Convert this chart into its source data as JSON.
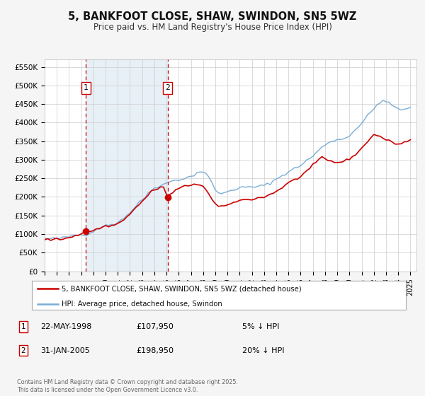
{
  "title": "5, BANKFOOT CLOSE, SHAW, SWINDON, SN5 5WZ",
  "subtitle": "Price paid vs. HM Land Registry's House Price Index (HPI)",
  "legend_line1": "5, BANKFOOT CLOSE, SHAW, SWINDON, SN5 5WZ (detached house)",
  "legend_line2": "HPI: Average price, detached house, Swindon",
  "property_color": "#cc0000",
  "hpi_color": "#7aadd4",
  "shade_color": "#deeaf5",
  "background_color": "#f5f5f5",
  "plot_bg_color": "#ffffff",
  "purchase1_date": 1998.387,
  "purchase1_price": 107950,
  "purchase2_date": 2005.083,
  "purchase2_price": 198950,
  "ylim": [
    0,
    570000
  ],
  "xlim_start": 1995.0,
  "xlim_end": 2025.5,
  "yticks": [
    0,
    50000,
    100000,
    150000,
    200000,
    250000,
    300000,
    350000,
    400000,
    450000,
    500000,
    550000
  ],
  "ytick_labels": [
    "£0",
    "£50K",
    "£100K",
    "£150K",
    "£200K",
    "£250K",
    "£300K",
    "£350K",
    "£400K",
    "£450K",
    "£500K",
    "£550K"
  ],
  "hpi_xpts": [
    1995.0,
    1995.25,
    1995.5,
    1995.75,
    1996.0,
    1996.25,
    1996.5,
    1996.75,
    1997.0,
    1997.25,
    1997.5,
    1997.75,
    1998.0,
    1998.25,
    1998.5,
    1998.75,
    1999.0,
    1999.25,
    1999.5,
    1999.75,
    2000.0,
    2000.25,
    2000.5,
    2000.75,
    2001.0,
    2001.25,
    2001.5,
    2001.75,
    2002.0,
    2002.25,
    2002.5,
    2002.75,
    2003.0,
    2003.25,
    2003.5,
    2003.75,
    2004.0,
    2004.25,
    2004.5,
    2004.75,
    2005.0,
    2005.25,
    2005.5,
    2005.75,
    2006.0,
    2006.25,
    2006.5,
    2006.75,
    2007.0,
    2007.25,
    2007.5,
    2007.75,
    2008.0,
    2008.25,
    2008.5,
    2008.75,
    2009.0,
    2009.25,
    2009.5,
    2009.75,
    2010.0,
    2010.25,
    2010.5,
    2010.75,
    2011.0,
    2011.25,
    2011.5,
    2011.75,
    2012.0,
    2012.25,
    2012.5,
    2012.75,
    2013.0,
    2013.25,
    2013.5,
    2013.75,
    2014.0,
    2014.25,
    2014.5,
    2014.75,
    2015.0,
    2015.25,
    2015.5,
    2015.75,
    2016.0,
    2016.25,
    2016.5,
    2016.75,
    2017.0,
    2017.25,
    2017.5,
    2017.75,
    2018.0,
    2018.25,
    2018.5,
    2018.75,
    2019.0,
    2019.25,
    2019.5,
    2019.75,
    2020.0,
    2020.25,
    2020.5,
    2020.75,
    2021.0,
    2021.25,
    2021.5,
    2021.75,
    2022.0,
    2022.25,
    2022.5,
    2022.75,
    2023.0,
    2023.25,
    2023.5,
    2023.75,
    2024.0,
    2024.25,
    2024.5,
    2024.75,
    2025.0
  ],
  "hpi_ypts": [
    88000,
    87500,
    87000,
    87500,
    88000,
    88500,
    89500,
    91000,
    93000,
    95000,
    97000,
    97500,
    98000,
    99000,
    100000,
    104000,
    108000,
    113000,
    118000,
    121000,
    122000,
    124000,
    126000,
    128000,
    132000,
    138000,
    144000,
    150000,
    158000,
    167000,
    176000,
    184000,
    192000,
    200000,
    210000,
    218000,
    224000,
    228000,
    232000,
    234000,
    236000,
    240000,
    244000,
    246000,
    247000,
    248000,
    250000,
    252000,
    255000,
    260000,
    265000,
    268000,
    268000,
    262000,
    250000,
    235000,
    220000,
    212000,
    208000,
    210000,
    215000,
    218000,
    220000,
    222000,
    224000,
    225000,
    226000,
    226000,
    226000,
    227000,
    228000,
    229000,
    231000,
    234000,
    238000,
    243000,
    248000,
    253000,
    258000,
    263000,
    268000,
    272000,
    276000,
    280000,
    286000,
    292000,
    298000,
    303000,
    310000,
    318000,
    326000,
    333000,
    340000,
    346000,
    350000,
    353000,
    354000,
    354000,
    356000,
    360000,
    366000,
    374000,
    382000,
    390000,
    398000,
    408000,
    418000,
    428000,
    436000,
    448000,
    456000,
    460000,
    456000,
    450000,
    446000,
    442000,
    438000,
    436000,
    434000,
    436000,
    440000
  ],
  "prop_xpts": [
    1995.0,
    1995.25,
    1995.5,
    1995.75,
    1996.0,
    1996.25,
    1996.5,
    1996.75,
    1997.0,
    1997.25,
    1997.5,
    1997.75,
    1998.0,
    1998.387,
    1998.5,
    1998.75,
    1999.0,
    1999.25,
    1999.5,
    1999.75,
    2000.0,
    2000.25,
    2000.5,
    2000.75,
    2001.0,
    2001.25,
    2001.5,
    2001.75,
    2002.0,
    2002.25,
    2002.5,
    2002.75,
    2003.0,
    2003.25,
    2003.5,
    2003.75,
    2004.0,
    2004.25,
    2004.5,
    2004.75,
    2005.083,
    2005.25,
    2005.5,
    2005.75,
    2006.0,
    2006.25,
    2006.5,
    2006.75,
    2007.0,
    2007.25,
    2007.5,
    2007.75,
    2008.0,
    2008.25,
    2008.5,
    2008.75,
    2009.0,
    2009.25,
    2009.5,
    2009.75,
    2010.0,
    2010.25,
    2010.5,
    2010.75,
    2011.0,
    2011.25,
    2011.5,
    2011.75,
    2012.0,
    2012.25,
    2012.5,
    2012.75,
    2013.0,
    2013.25,
    2013.5,
    2013.75,
    2014.0,
    2014.25,
    2014.5,
    2014.75,
    2015.0,
    2015.25,
    2015.5,
    2015.75,
    2016.0,
    2016.25,
    2016.5,
    2016.75,
    2017.0,
    2017.25,
    2017.5,
    2017.75,
    2018.0,
    2018.25,
    2018.5,
    2018.75,
    2019.0,
    2019.25,
    2019.5,
    2019.75,
    2020.0,
    2020.25,
    2020.5,
    2020.75,
    2021.0,
    2021.25,
    2021.5,
    2021.75,
    2022.0,
    2022.25,
    2022.5,
    2022.75,
    2023.0,
    2023.25,
    2023.5,
    2023.75,
    2024.0,
    2024.25,
    2024.5,
    2024.75,
    2025.0
  ],
  "prop_ypts": [
    86000,
    85500,
    85000,
    85500,
    86000,
    86000,
    87000,
    89000,
    91000,
    94000,
    96500,
    98000,
    100000,
    107950,
    107000,
    108000,
    110000,
    113000,
    116000,
    119000,
    121000,
    122000,
    123000,
    124000,
    128000,
    135000,
    140000,
    146000,
    153000,
    163000,
    172000,
    180000,
    188000,
    196000,
    206000,
    214000,
    218000,
    222000,
    226000,
    228000,
    198950,
    205000,
    212000,
    218000,
    222000,
    226000,
    228000,
    230000,
    232000,
    236000,
    234000,
    232000,
    228000,
    218000,
    205000,
    192000,
    180000,
    175000,
    172000,
    175000,
    180000,
    183000,
    185000,
    187000,
    190000,
    192000,
    193000,
    194000,
    194000,
    195000,
    197000,
    198000,
    200000,
    203000,
    207000,
    211000,
    215000,
    220000,
    226000,
    232000,
    238000,
    242000,
    246000,
    250000,
    256000,
    263000,
    270000,
    276000,
    283000,
    292000,
    300000,
    307000,
    302000,
    298000,
    296000,
    294000,
    293000,
    294000,
    295000,
    298000,
    303000,
    308000,
    315000,
    323000,
    330000,
    340000,
    350000,
    360000,
    367000,
    366000,
    363000,
    358000,
    354000,
    350000,
    347000,
    345000,
    342000,
    344000,
    347000,
    350000,
    354000
  ]
}
